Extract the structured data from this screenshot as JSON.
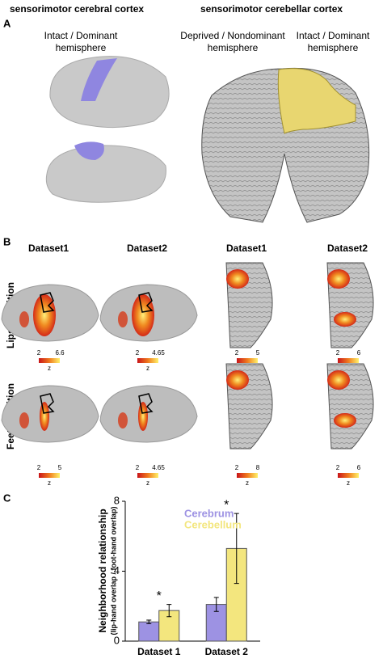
{
  "panels": {
    "A": {
      "label": "A",
      "left_title": "sensorimotor cerebral cortex",
      "right_title": "sensorimotor cerebellar cortex",
      "left_hemisphere": [
        "Intact / Dominant",
        "hemisphere"
      ],
      "right_left_hemisphere": [
        "Deprived / Nondominant",
        "hemisphere"
      ],
      "right_right_hemisphere": [
        "Intact / Dominant",
        "hemisphere"
      ]
    },
    "B": {
      "label": "B",
      "columns": [
        "Dataset1",
        "Dataset2",
        "Dataset1",
        "Dataset2"
      ],
      "rows": [
        {
          "name": "Lips condition",
          "colorbars": [
            {
              "min": 2,
              "max": 6.6,
              "unit": "z"
            },
            {
              "min": 2,
              "max": 4.65,
              "unit": "z"
            },
            {
              "min": 2,
              "max": 5,
              "unit": "z"
            },
            {
              "min": 2,
              "max": 6,
              "unit": "z"
            }
          ]
        },
        {
          "name": "Feet condition",
          "colorbars": [
            {
              "min": 2,
              "max": 5,
              "unit": "z"
            },
            {
              "min": 2,
              "max": 4.65,
              "unit": "z"
            },
            {
              "min": 2,
              "max": 8,
              "unit": "z"
            },
            {
              "min": 2,
              "max": 6,
              "unit": "z"
            }
          ]
        }
      ]
    },
    "C": {
      "label": "C"
    }
  },
  "chart_data": {
    "type": "bar",
    "y_label": "Neighborhood relationship",
    "y_sublabel": "(lip-hand overlap / foot-hand overlap)",
    "categories": [
      "Dataset 1",
      "Dataset 2"
    ],
    "series": [
      {
        "name": "Cerebrum",
        "color": "#9d92e3",
        "values": [
          1.1,
          2.1
        ],
        "errors": [
          0.1,
          0.4
        ]
      },
      {
        "name": "Cerebellum",
        "color": "#f3e67e",
        "values": [
          1.75,
          5.3
        ],
        "errors": [
          0.35,
          2.0
        ]
      }
    ],
    "annotations": [
      "*",
      "*"
    ],
    "ylim": [
      0,
      8
    ],
    "yticks": [
      0,
      4,
      8
    ]
  }
}
